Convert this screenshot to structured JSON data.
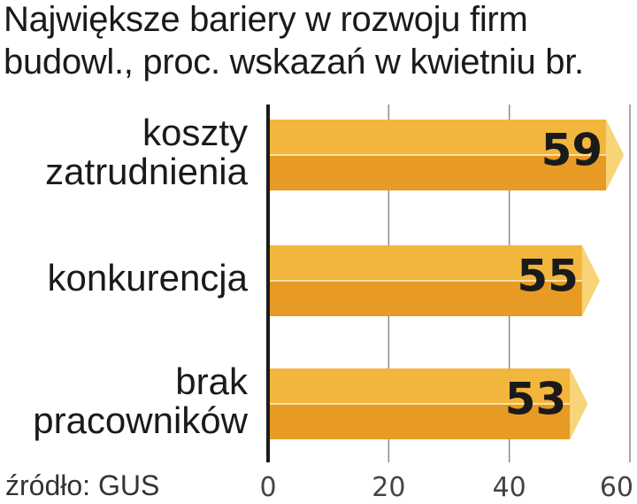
{
  "title": "Największe bariery w rozwoju firm budowl., proc. wskazań w kwietniu br.",
  "source": "źródło: GUS",
  "colors": {
    "bar_top": "#f2b63c",
    "bar_bottom": "#e79a24",
    "bar_tip": "#f7d475",
    "axis": "#1a1a1a",
    "grid": "#8a8a8a"
  },
  "chart_data": {
    "type": "bar",
    "orientation": "horizontal",
    "title": "Największe bariery w rozwoju firm budowl., proc. wskazań w kwietniu br.",
    "categories": [
      [
        "koszty",
        "zatrudnienia"
      ],
      [
        "konkurencja"
      ],
      [
        "brak",
        "pracowników"
      ]
    ],
    "values": [
      59,
      55,
      53
    ],
    "value_labels": [
      "59",
      "55",
      "53"
    ],
    "xlim": [
      0,
      60
    ],
    "xticks": [
      0,
      20,
      40,
      60
    ],
    "xtick_labels": [
      "0",
      "20",
      "40",
      "60"
    ],
    "grid": true
  }
}
